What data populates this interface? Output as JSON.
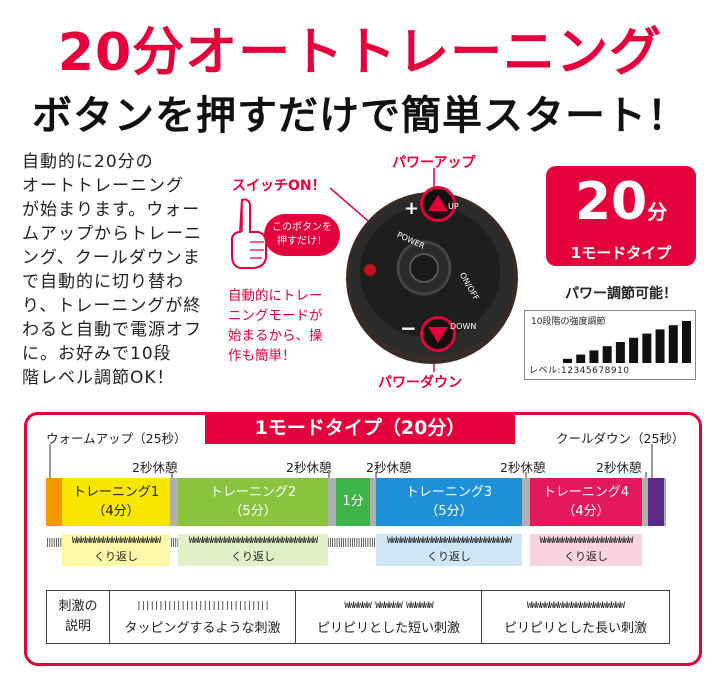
{
  "header": {
    "title": "20分オートトレーニング",
    "subtitle": "ボタンを押すだけで簡単スタート！"
  },
  "intro_lines": [
    "自動的に20分の",
    "オートトレーニング",
    "が始まります。ウォー",
    "ムアップからトレーニ",
    "ング、クールダウンま",
    "で自動的に切り替わ",
    "り、トレーニングが終",
    "わると自動で電源オフ",
    "に。お好みで10段",
    "階レベル調節OK！"
  ],
  "device": {
    "power_up_label": "パワーアップ",
    "power_down_label": "パワーダウン",
    "switch_on_label": "スイッチON！",
    "hand_bubble": [
      "このボタンを",
      "押すだけ！"
    ],
    "auto_note": [
      "自動的にトレー",
      "ニングモードが",
      "始まるから、操",
      "作も簡単！"
    ],
    "up_text": "UP",
    "down_text": "DOWN",
    "power_text": "POWER",
    "onoff_text": "ON/OFF",
    "plus": "+",
    "minus": "−"
  },
  "mode": {
    "number": "20",
    "unit": "分",
    "type_label": "1モードタイプ"
  },
  "power_adjust": "パワー調節可能！",
  "levels": {
    "title": "10段階の強度調節",
    "footer": "レベル:12345678910",
    "values": [
      1,
      2,
      3,
      4,
      5,
      6,
      7,
      8,
      9,
      10
    ]
  },
  "timeline": {
    "header": "1モードタイプ（20分）",
    "warmup": "ウォームアップ（25秒）",
    "cooldown": "クールダウン（25秒）",
    "rest": "2秒休憩",
    "segments": [
      {
        "name": "トレーニング1",
        "time": "（4分）",
        "color": "#f8e600"
      },
      {
        "name": "トレーニング2",
        "time": "（5分）",
        "color": "#8ac43f"
      },
      {
        "name": "1分",
        "time": "",
        "color": "#3db34a"
      },
      {
        "name": "トレーニング3",
        "time": "（5分）",
        "color": "#1e90d8"
      },
      {
        "name": "トレーニング4",
        "time": "（4分）",
        "color": "#e4195b"
      }
    ],
    "repeat": "くり返し"
  },
  "legend": {
    "label": [
      "刺激の",
      "説明"
    ],
    "items": [
      "タッピングするような刺激",
      "ピリピリとした短い刺激",
      "ピリピリとした長い刺激"
    ]
  }
}
